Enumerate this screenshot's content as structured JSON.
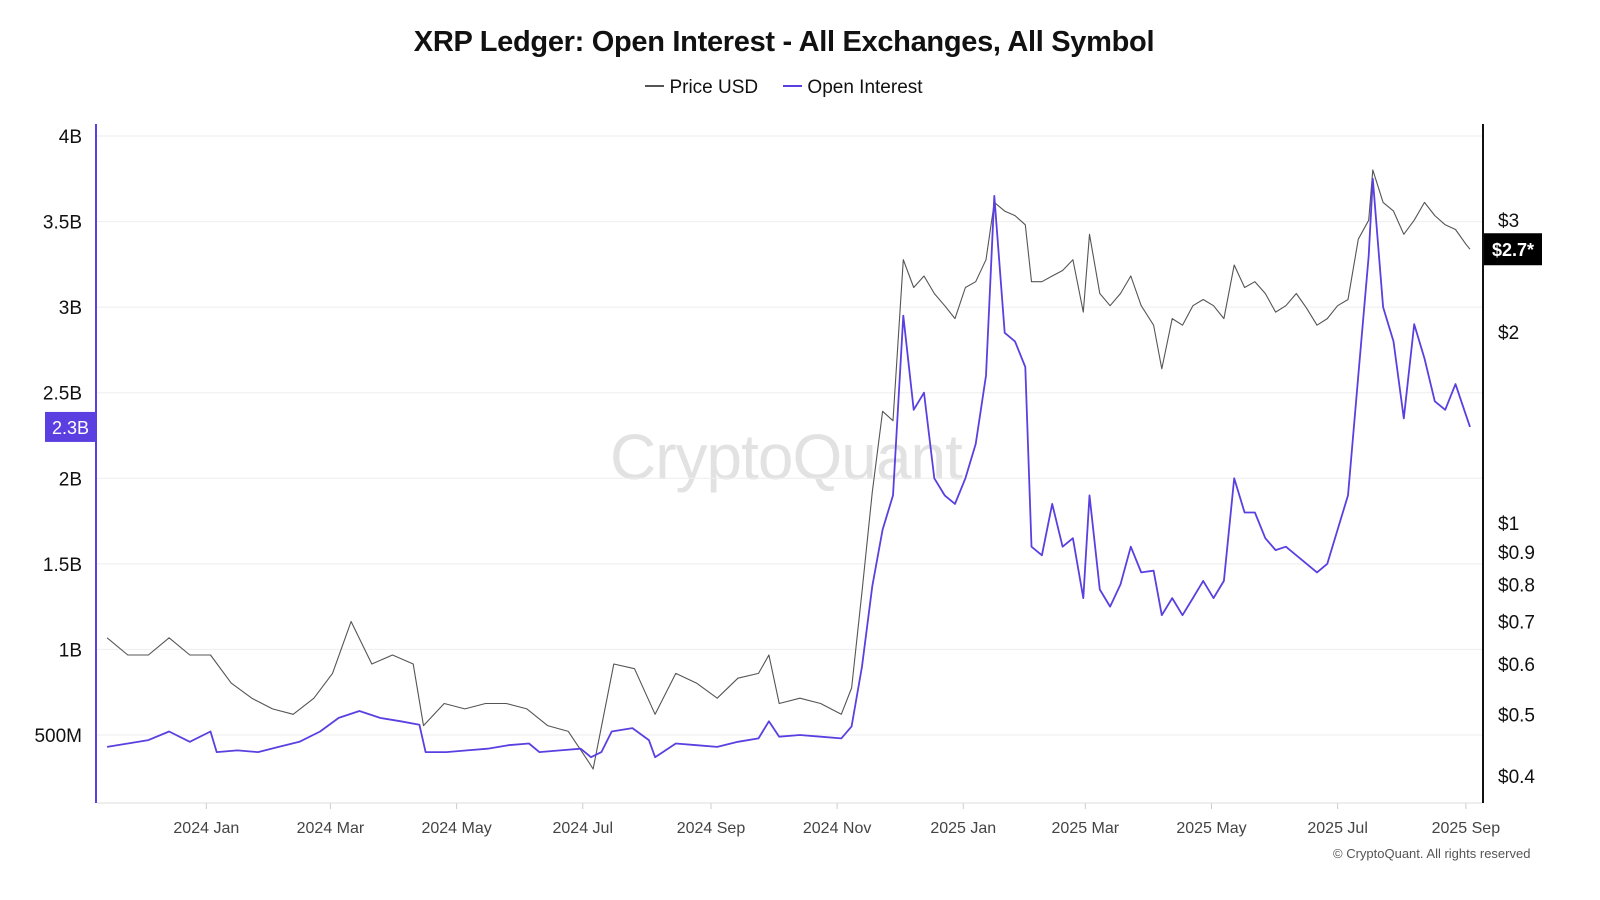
{
  "chart_data": {
    "type": "line",
    "title": "XRP Ledger: Open Interest - All Exchanges, All Symbol",
    "watermark": "CryptoQuant",
    "credit": "© CryptoQuant. All rights reserved",
    "legend": [
      {
        "name": "Price USD",
        "color": "#555555"
      },
      {
        "name": "Open Interest",
        "color": "#5b3fe0"
      }
    ],
    "legend_position": "top-center",
    "grid": true,
    "left_axis": {
      "name": "Open Interest",
      "ticks": [
        "500M",
        "1B",
        "1.5B",
        "2B",
        "2.5B",
        "3B",
        "3.5B",
        "4B"
      ],
      "tick_values": [
        500000000,
        1000000000,
        1500000000,
        2000000000,
        2500000000,
        3000000000,
        3500000000,
        4000000000
      ],
      "range": [
        120000000,
        4000000000
      ],
      "current_label": "2.3B",
      "current_value": 2300000000
    },
    "right_axis": {
      "name": "Price USD",
      "scale": "log",
      "ticks": [
        "$0.4",
        "$0.5",
        "$0.6",
        "$0.7",
        "$0.8",
        "$0.9",
        "$1",
        "$2",
        "$3"
      ],
      "tick_values": [
        0.4,
        0.5,
        0.6,
        0.7,
        0.8,
        0.9,
        1,
        2,
        3
      ],
      "range": [
        0.38,
        3.8
      ],
      "current_label": "$2.7*",
      "current_value": 2.7
    },
    "x_axis": {
      "range": [
        "2023-11-13",
        "2025-09-03"
      ],
      "ticks": [
        {
          "label": "2024 Jan",
          "date": "2024-01-01"
        },
        {
          "label": "2024 Mar",
          "date": "2024-03-01"
        },
        {
          "label": "2024 May",
          "date": "2024-05-01"
        },
        {
          "label": "2024 Jul",
          "date": "2024-07-01"
        },
        {
          "label": "2024 Sep",
          "date": "2024-09-01"
        },
        {
          "label": "2024 Nov",
          "date": "2024-11-01"
        },
        {
          "label": "2025 Jan",
          "date": "2025-01-01"
        },
        {
          "label": "2025 Mar",
          "date": "2025-03-01"
        },
        {
          "label": "2025 May",
          "date": "2025-05-01"
        },
        {
          "label": "2025 Jul",
          "date": "2025-07-01"
        },
        {
          "label": "2025 Sep",
          "date": "2025-09-01"
        }
      ]
    },
    "series": [
      {
        "name": "Price USD",
        "axis": "right",
        "color": "#555555",
        "points": [
          [
            "2023-11-14",
            0.66
          ],
          [
            "2023-11-24",
            0.62
          ],
          [
            "2023-12-04",
            0.62
          ],
          [
            "2023-12-14",
            0.66
          ],
          [
            "2023-12-24",
            0.62
          ],
          [
            "2024-01-03",
            0.62
          ],
          [
            "2024-01-13",
            0.56
          ],
          [
            "2024-01-23",
            0.53
          ],
          [
            "2024-02-02",
            0.51
          ],
          [
            "2024-02-12",
            0.5
          ],
          [
            "2024-02-22",
            0.53
          ],
          [
            "2024-03-02",
            0.58
          ],
          [
            "2024-03-11",
            0.7
          ],
          [
            "2024-03-21",
            0.6
          ],
          [
            "2024-03-31",
            0.62
          ],
          [
            "2024-04-10",
            0.6
          ],
          [
            "2024-04-15",
            0.48
          ],
          [
            "2024-04-25",
            0.52
          ],
          [
            "2024-05-05",
            0.51
          ],
          [
            "2024-05-15",
            0.52
          ],
          [
            "2024-05-25",
            0.52
          ],
          [
            "2024-06-04",
            0.51
          ],
          [
            "2024-06-14",
            0.48
          ],
          [
            "2024-06-24",
            0.47
          ],
          [
            "2024-07-04",
            0.42
          ],
          [
            "2024-07-06",
            0.41
          ],
          [
            "2024-07-16",
            0.6
          ],
          [
            "2024-07-26",
            0.59
          ],
          [
            "2024-08-05",
            0.5
          ],
          [
            "2024-08-15",
            0.58
          ],
          [
            "2024-08-25",
            0.56
          ],
          [
            "2024-09-04",
            0.53
          ],
          [
            "2024-09-14",
            0.57
          ],
          [
            "2024-09-24",
            0.58
          ],
          [
            "2024-09-29",
            0.62
          ],
          [
            "2024-10-04",
            0.52
          ],
          [
            "2024-10-14",
            0.53
          ],
          [
            "2024-10-24",
            0.52
          ],
          [
            "2024-11-03",
            0.5
          ],
          [
            "2024-11-08",
            0.55
          ],
          [
            "2024-11-13",
            0.78
          ],
          [
            "2024-11-18",
            1.12
          ],
          [
            "2024-11-23",
            1.5
          ],
          [
            "2024-11-28",
            1.45
          ],
          [
            "2024-12-03",
            2.6
          ],
          [
            "2024-12-08",
            2.35
          ],
          [
            "2024-12-13",
            2.45
          ],
          [
            "2024-12-18",
            2.3
          ],
          [
            "2024-12-23",
            2.2
          ],
          [
            "2024-12-28",
            2.1
          ],
          [
            "2025-01-02",
            2.35
          ],
          [
            "2025-01-07",
            2.4
          ],
          [
            "2025-01-12",
            2.6
          ],
          [
            "2025-01-16",
            3.2
          ],
          [
            "2025-01-21",
            3.1
          ],
          [
            "2025-01-26",
            3.05
          ],
          [
            "2025-01-31",
            2.95
          ],
          [
            "2025-02-03",
            2.4
          ],
          [
            "2025-02-08",
            2.4
          ],
          [
            "2025-02-13",
            2.45
          ],
          [
            "2025-02-18",
            2.5
          ],
          [
            "2025-02-23",
            2.6
          ],
          [
            "2025-02-28",
            2.15
          ],
          [
            "2025-03-03",
            2.85
          ],
          [
            "2025-03-08",
            2.3
          ],
          [
            "2025-03-13",
            2.2
          ],
          [
            "2025-03-18",
            2.3
          ],
          [
            "2025-03-23",
            2.45
          ],
          [
            "2025-03-28",
            2.2
          ],
          [
            "2025-04-03",
            2.05
          ],
          [
            "2025-04-07",
            1.75
          ],
          [
            "2025-04-12",
            2.1
          ],
          [
            "2025-04-17",
            2.05
          ],
          [
            "2025-04-22",
            2.2
          ],
          [
            "2025-04-27",
            2.25
          ],
          [
            "2025-05-02",
            2.2
          ],
          [
            "2025-05-07",
            2.1
          ],
          [
            "2025-05-12",
            2.55
          ],
          [
            "2025-05-17",
            2.35
          ],
          [
            "2025-05-22",
            2.4
          ],
          [
            "2025-05-27",
            2.3
          ],
          [
            "2025-06-01",
            2.15
          ],
          [
            "2025-06-06",
            2.2
          ],
          [
            "2025-06-11",
            2.3
          ],
          [
            "2025-06-16",
            2.18
          ],
          [
            "2025-06-21",
            2.05
          ],
          [
            "2025-06-26",
            2.1
          ],
          [
            "2025-07-01",
            2.2
          ],
          [
            "2025-07-06",
            2.25
          ],
          [
            "2025-07-11",
            2.8
          ],
          [
            "2025-07-16",
            3.0
          ],
          [
            "2025-07-18",
            3.6
          ],
          [
            "2025-07-23",
            3.2
          ],
          [
            "2025-07-28",
            3.1
          ],
          [
            "2025-08-02",
            2.85
          ],
          [
            "2025-08-07",
            3.0
          ],
          [
            "2025-08-12",
            3.2
          ],
          [
            "2025-08-17",
            3.05
          ],
          [
            "2025-08-22",
            2.95
          ],
          [
            "2025-08-27",
            2.9
          ],
          [
            "2025-09-01",
            2.75
          ],
          [
            "2025-09-03",
            2.7
          ]
        ]
      },
      {
        "name": "Open Interest",
        "axis": "left",
        "color": "#5b3fe0",
        "points": [
          [
            "2023-11-14",
            430000000
          ],
          [
            "2023-11-24",
            450000000
          ],
          [
            "2023-12-04",
            470000000
          ],
          [
            "2023-12-14",
            520000000
          ],
          [
            "2023-12-24",
            460000000
          ],
          [
            "2024-01-03",
            520000000
          ],
          [
            "2024-01-06",
            400000000
          ],
          [
            "2024-01-16",
            410000000
          ],
          [
            "2024-01-26",
            400000000
          ],
          [
            "2024-02-05",
            430000000
          ],
          [
            "2024-02-15",
            460000000
          ],
          [
            "2024-02-25",
            520000000
          ],
          [
            "2024-03-05",
            600000000
          ],
          [
            "2024-03-15",
            640000000
          ],
          [
            "2024-03-25",
            600000000
          ],
          [
            "2024-04-04",
            580000000
          ],
          [
            "2024-04-13",
            560000000
          ],
          [
            "2024-04-16",
            400000000
          ],
          [
            "2024-04-26",
            400000000
          ],
          [
            "2024-05-06",
            410000000
          ],
          [
            "2024-05-16",
            420000000
          ],
          [
            "2024-05-26",
            440000000
          ],
          [
            "2024-06-05",
            450000000
          ],
          [
            "2024-06-10",
            400000000
          ],
          [
            "2024-06-20",
            410000000
          ],
          [
            "2024-06-30",
            420000000
          ],
          [
            "2024-07-05",
            370000000
          ],
          [
            "2024-07-10",
            400000000
          ],
          [
            "2024-07-15",
            520000000
          ],
          [
            "2024-07-25",
            540000000
          ],
          [
            "2024-08-02",
            470000000
          ],
          [
            "2024-08-05",
            370000000
          ],
          [
            "2024-08-15",
            450000000
          ],
          [
            "2024-08-25",
            440000000
          ],
          [
            "2024-09-04",
            430000000
          ],
          [
            "2024-09-14",
            460000000
          ],
          [
            "2024-09-24",
            480000000
          ],
          [
            "2024-09-29",
            580000000
          ],
          [
            "2024-10-04",
            490000000
          ],
          [
            "2024-10-14",
            500000000
          ],
          [
            "2024-10-24",
            490000000
          ],
          [
            "2024-11-03",
            480000000
          ],
          [
            "2024-11-08",
            550000000
          ],
          [
            "2024-11-13",
            900000000
          ],
          [
            "2024-11-18",
            1370000000
          ],
          [
            "2024-11-23",
            1700000000
          ],
          [
            "2024-11-28",
            1900000000
          ],
          [
            "2024-12-03",
            2950000000
          ],
          [
            "2024-12-08",
            2400000000
          ],
          [
            "2024-12-13",
            2500000000
          ],
          [
            "2024-12-18",
            2000000000
          ],
          [
            "2024-12-23",
            1900000000
          ],
          [
            "2024-12-28",
            1850000000
          ],
          [
            "2025-01-02",
            2000000000
          ],
          [
            "2025-01-07",
            2200000000
          ],
          [
            "2025-01-12",
            2600000000
          ],
          [
            "2025-01-16",
            3650000000
          ],
          [
            "2025-01-21",
            2850000000
          ],
          [
            "2025-01-26",
            2800000000
          ],
          [
            "2025-01-31",
            2650000000
          ],
          [
            "2025-02-03",
            1600000000
          ],
          [
            "2025-02-08",
            1550000000
          ],
          [
            "2025-02-13",
            1850000000
          ],
          [
            "2025-02-18",
            1600000000
          ],
          [
            "2025-02-23",
            1650000000
          ],
          [
            "2025-02-28",
            1300000000
          ],
          [
            "2025-03-03",
            1900000000
          ],
          [
            "2025-03-08",
            1350000000
          ],
          [
            "2025-03-13",
            1250000000
          ],
          [
            "2025-03-18",
            1380000000
          ],
          [
            "2025-03-23",
            1600000000
          ],
          [
            "2025-03-28",
            1450000000
          ],
          [
            "2025-04-03",
            1460000000
          ],
          [
            "2025-04-07",
            1200000000
          ],
          [
            "2025-04-12",
            1300000000
          ],
          [
            "2025-04-17",
            1200000000
          ],
          [
            "2025-04-22",
            1300000000
          ],
          [
            "2025-04-27",
            1400000000
          ],
          [
            "2025-05-02",
            1300000000
          ],
          [
            "2025-05-07",
            1400000000
          ],
          [
            "2025-05-12",
            2000000000
          ],
          [
            "2025-05-17",
            1800000000
          ],
          [
            "2025-05-22",
            1800000000
          ],
          [
            "2025-05-27",
            1650000000
          ],
          [
            "2025-06-01",
            1580000000
          ],
          [
            "2025-06-06",
            1600000000
          ],
          [
            "2025-06-11",
            1550000000
          ],
          [
            "2025-06-16",
            1500000000
          ],
          [
            "2025-06-21",
            1450000000
          ],
          [
            "2025-06-26",
            1500000000
          ],
          [
            "2025-07-01",
            1700000000
          ],
          [
            "2025-07-06",
            1900000000
          ],
          [
            "2025-07-11",
            2600000000
          ],
          [
            "2025-07-16",
            3300000000
          ],
          [
            "2025-07-18",
            3750000000
          ],
          [
            "2025-07-23",
            3000000000
          ],
          [
            "2025-07-28",
            2800000000
          ],
          [
            "2025-08-02",
            2350000000
          ],
          [
            "2025-08-07",
            2900000000
          ],
          [
            "2025-08-12",
            2700000000
          ],
          [
            "2025-08-17",
            2450000000
          ],
          [
            "2025-08-22",
            2400000000
          ],
          [
            "2025-08-27",
            2550000000
          ],
          [
            "2025-09-01",
            2370000000
          ],
          [
            "2025-09-03",
            2300000000
          ]
        ]
      }
    ]
  }
}
